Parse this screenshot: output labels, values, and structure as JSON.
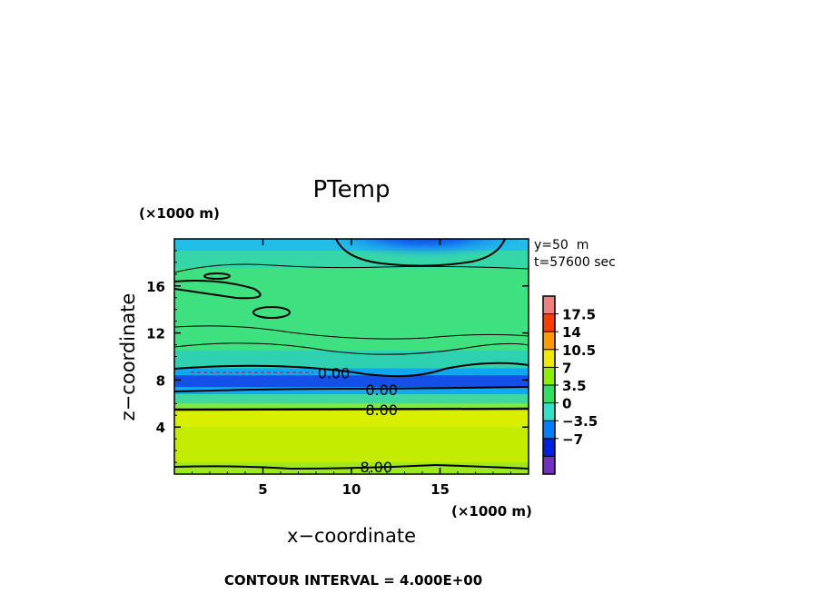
{
  "chart_data": {
    "type": "heatmap",
    "title": "PTemp",
    "xlabel": "x−coordinate",
    "ylabel": "z−coordinate",
    "x_unit": "(×1000 m)",
    "y_unit": "(×1000 m)",
    "xlim": [
      0,
      20
    ],
    "ylim": [
      0,
      20
    ],
    "x_ticks": [
      5,
      10,
      15
    ],
    "y_ticks": [
      4,
      8,
      12,
      16
    ],
    "annotations": [
      "y=50  m",
      "t=57600 sec"
    ],
    "footer": "CONTOUR INTERVAL = 4.000E+00",
    "colorbar": {
      "labels": [
        "17.5",
        "14",
        "10.5",
        "7",
        "3.5",
        "0",
        "−3.5",
        "−7"
      ],
      "values": [
        17.5,
        14,
        10.5,
        7,
        3.5,
        0,
        -3.5,
        -7
      ],
      "colors": [
        "#f08080",
        "#ff3c00",
        "#ff9a00",
        "#f0ea00",
        "#8cf000",
        "#30e060",
        "#30e0c8",
        "#0080ff",
        "#0020e0",
        "#7030c0"
      ]
    },
    "contour_labels": [
      {
        "text": "0.00",
        "x": 9.0,
        "y": 8.6
      },
      {
        "text": "0.00",
        "x": 11.7,
        "y": 7.2
      },
      {
        "text": "8.00",
        "x": 11.7,
        "y": 5.5
      },
      {
        "text": "8.00",
        "x": 11.4,
        "y": 0.6
      }
    ],
    "field_layers": [
      {
        "z_range": [
          19,
          20
        ],
        "value": 3.0,
        "color": "#22bde8"
      },
      {
        "z_range": [
          17.5,
          19
        ],
        "value": 4.5,
        "color": "#35d6a8"
      },
      {
        "z_range": [
          10.5,
          17.5
        ],
        "value": 6.0,
        "color": "#3ee080"
      },
      {
        "z_range": [
          9.0,
          10.5
        ],
        "value": 4.0,
        "color": "#2fd2b0"
      },
      {
        "z_range": [
          8.4,
          9.0
        ],
        "value": 0.5,
        "color": "#0fa8f0"
      },
      {
        "z_range": [
          7.4,
          8.4
        ],
        "value": -3.0,
        "color": "#1450e8"
      },
      {
        "z_range": [
          6.8,
          7.4
        ],
        "value": 1.0,
        "color": "#10a8f0"
      },
      {
        "z_range": [
          6.0,
          6.8
        ],
        "value": 5.0,
        "color": "#3ed8a0"
      },
      {
        "z_range": [
          5.5,
          6.0
        ],
        "value": 7.0,
        "color": "#80e840"
      },
      {
        "z_range": [
          4.0,
          5.5
        ],
        "value": 9.5,
        "color": "#d8f000"
      },
      {
        "z_range": [
          1.0,
          4.0
        ],
        "value": 9.0,
        "color": "#c4ec00"
      },
      {
        "z_range": [
          0,
          1.0
        ],
        "value": 8.0,
        "color": "#9ee820"
      }
    ]
  }
}
